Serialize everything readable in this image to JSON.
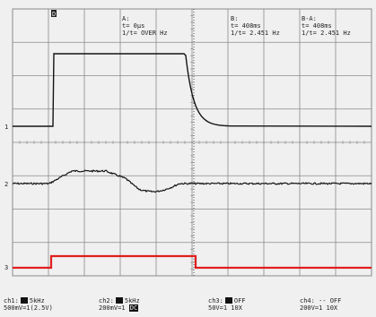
{
  "markers": {
    "trigger": "D",
    "ch1": "1",
    "ch2": "2",
    "ch3": "3"
  },
  "cursors": {
    "a": {
      "label": "A:",
      "t": "t= 0µs",
      "freq": "1/t= OVER Hz"
    },
    "b": {
      "label": "B:",
      "t": "t= 408ms",
      "freq": "1/t= 2.451 Hz"
    },
    "ba": {
      "label": "B-A:",
      "t": "t= 408ms",
      "freq": "1/t= 2.451 Hz"
    }
  },
  "channels": [
    {
      "name": "ch1:",
      "filter": "5kHz",
      "scale": "500mV=1(2.5V)"
    },
    {
      "name": "ch2:",
      "filter": "5kHz",
      "scale": "200mV=1",
      "badge": "DC"
    },
    {
      "name": "ch3:",
      "filter": "OFF",
      "scale": "50V=1 10X"
    },
    {
      "name": "ch4:",
      "filter": "-- OFF",
      "scale": "200V=1 10X"
    }
  ],
  "colors": {
    "grid": "#8a8a8a",
    "trace": "#141414",
    "ch3_trace": "#e01e1e",
    "background": "#f0f0f0"
  }
}
